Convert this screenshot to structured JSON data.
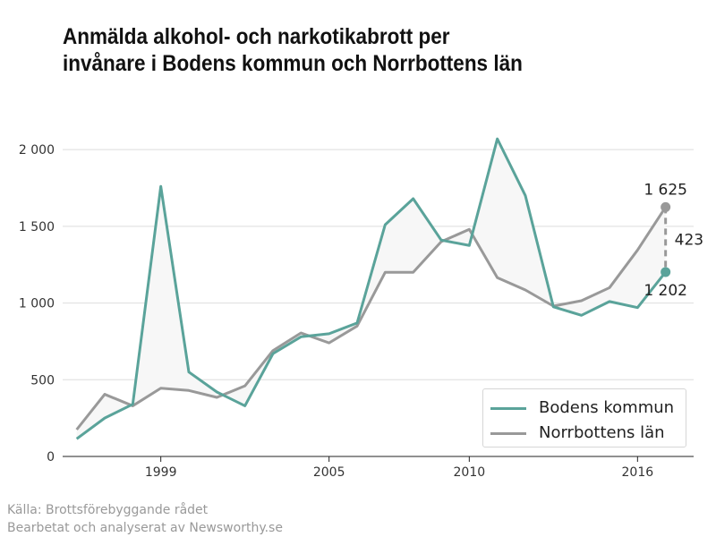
{
  "title": {
    "line1": "Anmälda alkohol- och narkotikabrott per",
    "line2": "invånare i Bodens kommun och Norrbottens län"
  },
  "source": {
    "line1": "Källa: Brottsförebyggande rådet",
    "line2": "Bearbetat och analyserat av Newsworthy.se"
  },
  "colors": {
    "boden": "#5aa39a",
    "norrbotten": "#999999",
    "grid": "#dddddd",
    "fill": "#f7f7f7"
  },
  "chart_data": {
    "type": "line",
    "x": [
      1996,
      1997,
      1998,
      1999,
      2000,
      2001,
      2002,
      2003,
      2004,
      2005,
      2006,
      2007,
      2008,
      2009,
      2010,
      2011,
      2012,
      2013,
      2014,
      2015,
      2016,
      2017
    ],
    "series": [
      {
        "name": "Bodens kommun",
        "color": "#5aa39a",
        "values": [
          115,
          250,
          340,
          1760,
          550,
          420,
          330,
          670,
          780,
          800,
          870,
          1510,
          1680,
          1410,
          1375,
          2070,
          1700,
          975,
          920,
          1010,
          970,
          1202
        ]
      },
      {
        "name": "Norrbottens län",
        "color": "#999999",
        "values": [
          175,
          405,
          330,
          445,
          430,
          385,
          460,
          690,
          805,
          740,
          850,
          1200,
          1200,
          1400,
          1480,
          1165,
          1085,
          980,
          1015,
          1100,
          1345,
          1625
        ]
      }
    ],
    "ylim": [
      0,
      2100
    ],
    "yticks": [
      0,
      500,
      1000,
      1500,
      2000
    ],
    "ytick_labels": [
      "0",
      "500",
      "1 000",
      "1 500",
      "2 000"
    ],
    "xticks": [
      1999,
      2005,
      2010,
      2016
    ],
    "xtick_labels": [
      "1999",
      "2005",
      "2010",
      "2016"
    ],
    "xlim": [
      1995.5,
      2018
    ],
    "annotations": {
      "norrbotten_last": "1 625",
      "boden_last": "1 202",
      "difference": "423"
    },
    "grid": true,
    "legend_position": "bottom-right"
  }
}
